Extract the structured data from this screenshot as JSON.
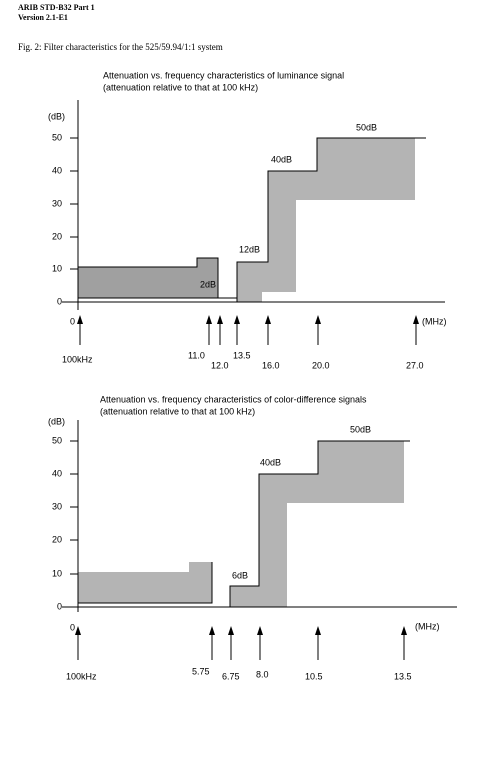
{
  "header": {
    "line1": "ARIB STD-B32 Part 1",
    "line2": "Version 2.1-E1"
  },
  "caption": "Fig. 2: Filter characteristics for the 525/59.94/1:1 system",
  "figures": [
    {
      "title": [
        "Attenuation vs. frequency characteristics of luminance signal",
        "(attenuation relative to that at 100 kHz)"
      ],
      "y_unit": "(dB)",
      "yticks": [
        50,
        40,
        30,
        20,
        10,
        0
      ],
      "origin": "0",
      "x_unit": "(MHz)",
      "frequencies": [
        "100kHz",
        "11.0",
        "12.0",
        "13.5",
        "16.0",
        "20.0",
        "27.0"
      ],
      "levels": [
        "50dB",
        "40dB",
        "12dB",
        "2dB"
      ]
    },
    {
      "title": [
        "Attenuation vs. frequency characteristics of color-difference signals",
        "(attenuation relative to that at 100 kHz)"
      ],
      "y_unit": "(dB)",
      "yticks": [
        50,
        40,
        30,
        20,
        10,
        0
      ],
      "origin": "0",
      "x_unit": "(MHz)",
      "frequencies": [
        "100kHz",
        "5.75",
        "6.75",
        "8.0",
        "10.5",
        "13.5"
      ],
      "levels": [
        "50dB",
        "40dB",
        "6dB"
      ]
    }
  ]
}
